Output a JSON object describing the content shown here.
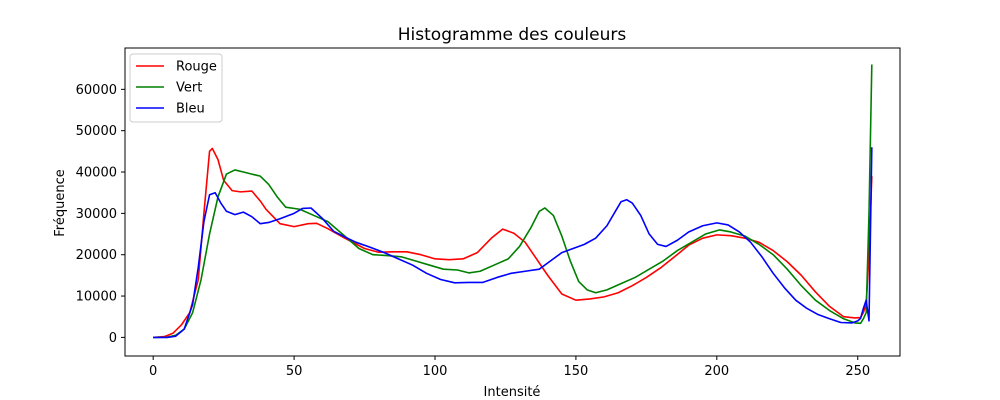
{
  "chart_data": {
    "type": "line",
    "title": "Histogramme des couleurs",
    "xlabel": "Intensité",
    "ylabel": "Fréquence",
    "xlim": [
      -10,
      265
    ],
    "ylim": [
      -4500,
      70000
    ],
    "xticks": [
      0,
      50,
      100,
      150,
      200,
      250
    ],
    "yticks": [
      0,
      10000,
      20000,
      30000,
      40000,
      50000,
      60000
    ],
    "grid": false,
    "legend_position": "top-left",
    "series": [
      {
        "name": "Rouge",
        "color": "#ff0000",
        "points": [
          [
            0,
            0
          ],
          [
            4,
            200
          ],
          [
            7,
            1000
          ],
          [
            10,
            3000
          ],
          [
            13,
            6000
          ],
          [
            16,
            14000
          ],
          [
            18,
            30000
          ],
          [
            20,
            45000
          ],
          [
            21,
            45700
          ],
          [
            23,
            43000
          ],
          [
            25,
            38000
          ],
          [
            28,
            35500
          ],
          [
            31,
            35200
          ],
          [
            35,
            35400
          ],
          [
            38,
            33000
          ],
          [
            40,
            31000
          ],
          [
            45,
            27500
          ],
          [
            50,
            26800
          ],
          [
            55,
            27500
          ],
          [
            58,
            27600
          ],
          [
            62,
            26300
          ],
          [
            68,
            24000
          ],
          [
            75,
            21500
          ],
          [
            80,
            20600
          ],
          [
            85,
            20700
          ],
          [
            90,
            20700
          ],
          [
            95,
            20000
          ],
          [
            100,
            19000
          ],
          [
            105,
            18800
          ],
          [
            110,
            19000
          ],
          [
            115,
            20500
          ],
          [
            120,
            24000
          ],
          [
            124,
            26200
          ],
          [
            128,
            25200
          ],
          [
            132,
            23000
          ],
          [
            135,
            20000
          ],
          [
            140,
            15000
          ],
          [
            145,
            10500
          ],
          [
            150,
            9000
          ],
          [
            155,
            9300
          ],
          [
            160,
            9800
          ],
          [
            165,
            10800
          ],
          [
            170,
            12500
          ],
          [
            175,
            14500
          ],
          [
            180,
            16800
          ],
          [
            185,
            19500
          ],
          [
            190,
            22300
          ],
          [
            195,
            24000
          ],
          [
            200,
            24800
          ],
          [
            205,
            24600
          ],
          [
            210,
            24000
          ],
          [
            215,
            23000
          ],
          [
            220,
            21000
          ],
          [
            225,
            18300
          ],
          [
            230,
            15000
          ],
          [
            235,
            11000
          ],
          [
            240,
            7500
          ],
          [
            245,
            5000
          ],
          [
            249,
            4700
          ],
          [
            251,
            4800
          ],
          [
            252,
            6000
          ],
          [
            253,
            8000
          ],
          [
            254,
            20000
          ],
          [
            255,
            39000
          ]
        ]
      },
      {
        "name": "Vert",
        "color": "#008000",
        "points": [
          [
            0,
            0
          ],
          [
            5,
            50
          ],
          [
            8,
            500
          ],
          [
            11,
            2000
          ],
          [
            14,
            6000
          ],
          [
            17,
            14000
          ],
          [
            20,
            25000
          ],
          [
            23,
            34000
          ],
          [
            26,
            39500
          ],
          [
            29,
            40500
          ],
          [
            32,
            40000
          ],
          [
            35,
            39500
          ],
          [
            38,
            39000
          ],
          [
            41,
            37000
          ],
          [
            44,
            34000
          ],
          [
            47,
            31500
          ],
          [
            52,
            31000
          ],
          [
            57,
            29500
          ],
          [
            62,
            28000
          ],
          [
            68,
            24500
          ],
          [
            73,
            21500
          ],
          [
            78,
            20000
          ],
          [
            83,
            19800
          ],
          [
            88,
            19500
          ],
          [
            93,
            18500
          ],
          [
            98,
            17500
          ],
          [
            103,
            16500
          ],
          [
            108,
            16300
          ],
          [
            112,
            15600
          ],
          [
            116,
            16000
          ],
          [
            121,
            17500
          ],
          [
            126,
            19000
          ],
          [
            130,
            22000
          ],
          [
            134,
            26500
          ],
          [
            137,
            30500
          ],
          [
            139,
            31300
          ],
          [
            142,
            29500
          ],
          [
            145,
            24500
          ],
          [
            148,
            18500
          ],
          [
            151,
            13500
          ],
          [
            154,
            11500
          ],
          [
            157,
            10800
          ],
          [
            161,
            11500
          ],
          [
            166,
            13000
          ],
          [
            171,
            14500
          ],
          [
            176,
            16500
          ],
          [
            181,
            18500
          ],
          [
            186,
            21000
          ],
          [
            191,
            23000
          ],
          [
            196,
            25000
          ],
          [
            201,
            26000
          ],
          [
            205,
            25500
          ],
          [
            210,
            24500
          ],
          [
            215,
            22500
          ],
          [
            220,
            20000
          ],
          [
            225,
            16500
          ],
          [
            230,
            12500
          ],
          [
            235,
            9000
          ],
          [
            240,
            6500
          ],
          [
            245,
            4500
          ],
          [
            249,
            3500
          ],
          [
            251,
            3400
          ],
          [
            252,
            4500
          ],
          [
            253,
            6000
          ],
          [
            254,
            30000
          ],
          [
            255,
            66000
          ]
        ]
      },
      {
        "name": "Bleu",
        "color": "#0000ff",
        "points": [
          [
            0,
            0
          ],
          [
            5,
            0
          ],
          [
            8,
            300
          ],
          [
            11,
            2000
          ],
          [
            14,
            8000
          ],
          [
            16,
            17000
          ],
          [
            18,
            28000
          ],
          [
            20,
            34500
          ],
          [
            22,
            35000
          ],
          [
            24,
            32500
          ],
          [
            26,
            30500
          ],
          [
            29,
            29700
          ],
          [
            32,
            30300
          ],
          [
            35,
            29200
          ],
          [
            38,
            27500
          ],
          [
            41,
            27800
          ],
          [
            45,
            28700
          ],
          [
            50,
            30000
          ],
          [
            53,
            31200
          ],
          [
            56,
            31300
          ],
          [
            60,
            28800
          ],
          [
            64,
            25700
          ],
          [
            68,
            24300
          ],
          [
            72,
            23000
          ],
          [
            77,
            21800
          ],
          [
            82,
            20500
          ],
          [
            87,
            19000
          ],
          [
            92,
            17500
          ],
          [
            97,
            15500
          ],
          [
            102,
            14000
          ],
          [
            107,
            13200
          ],
          [
            112,
            13300
          ],
          [
            117,
            13300
          ],
          [
            122,
            14500
          ],
          [
            127,
            15500
          ],
          [
            132,
            16000
          ],
          [
            137,
            16500
          ],
          [
            141,
            18500
          ],
          [
            145,
            20500
          ],
          [
            149,
            21500
          ],
          [
            153,
            22500
          ],
          [
            157,
            24000
          ],
          [
            161,
            27000
          ],
          [
            164,
            30500
          ],
          [
            166,
            32800
          ],
          [
            168,
            33300
          ],
          [
            170,
            32500
          ],
          [
            173,
            29500
          ],
          [
            176,
            25000
          ],
          [
            179,
            22500
          ],
          [
            182,
            22000
          ],
          [
            186,
            23500
          ],
          [
            190,
            25500
          ],
          [
            195,
            27000
          ],
          [
            200,
            27700
          ],
          [
            204,
            27200
          ],
          [
            208,
            25500
          ],
          [
            212,
            23000
          ],
          [
            216,
            19500
          ],
          [
            220,
            15500
          ],
          [
            224,
            12000
          ],
          [
            228,
            9000
          ],
          [
            232,
            7000
          ],
          [
            236,
            5500
          ],
          [
            240,
            4500
          ],
          [
            244,
            3600
          ],
          [
            248,
            3500
          ],
          [
            250,
            4000
          ],
          [
            251,
            4600
          ],
          [
            252,
            7000
          ],
          [
            253,
            9000
          ],
          [
            254,
            4000
          ],
          [
            255,
            46000
          ]
        ]
      }
    ]
  }
}
